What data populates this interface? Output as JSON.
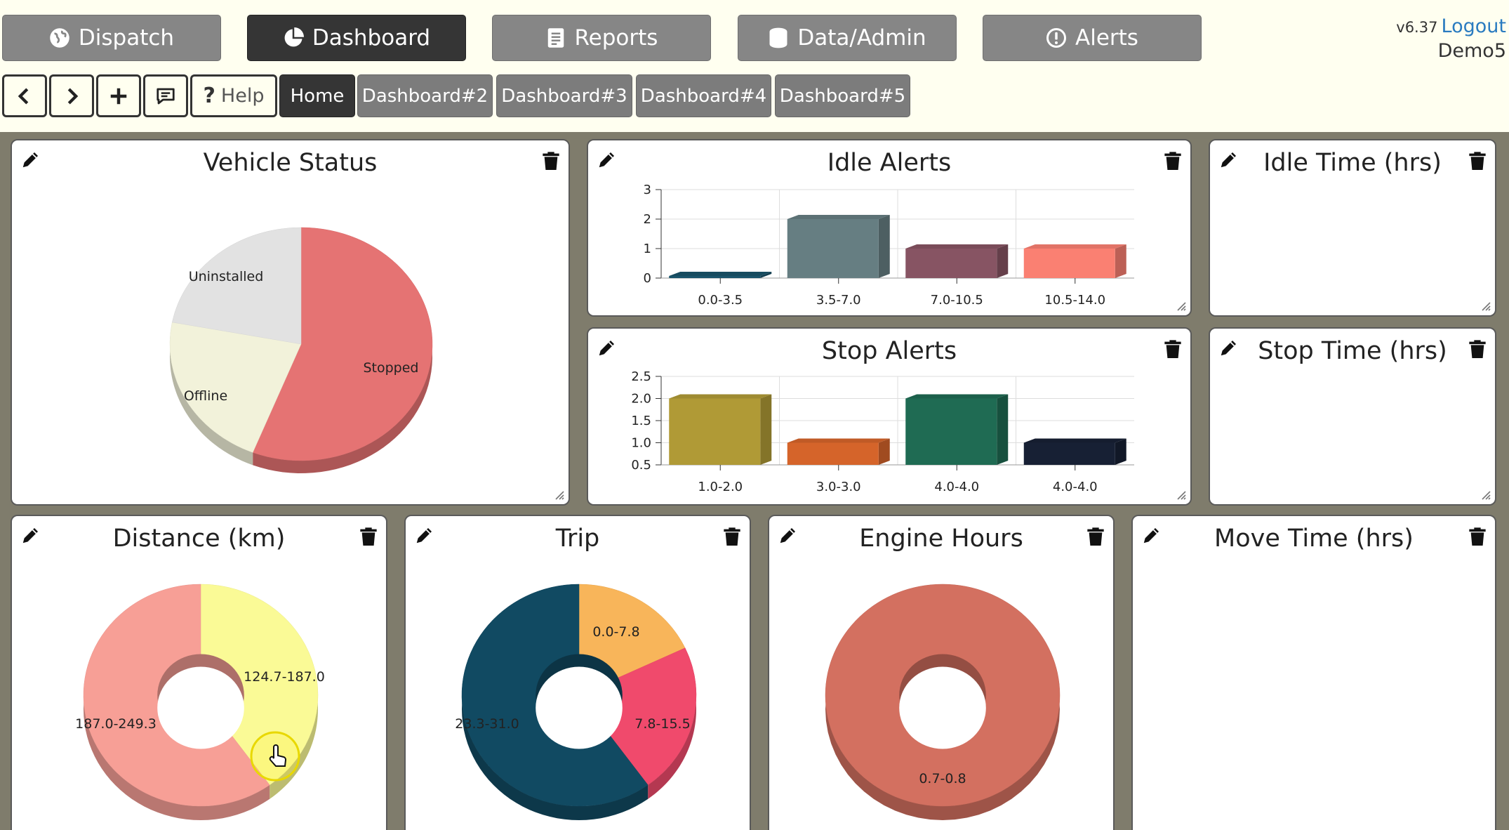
{
  "app": {
    "version": "v6.37",
    "logout": "Logout",
    "user": "Demo5"
  },
  "main_nav": [
    {
      "label": "Dispatch",
      "icon": "globe-icon"
    },
    {
      "label": "Dashboard",
      "icon": "pie-chart-icon",
      "active": true
    },
    {
      "label": "Reports",
      "icon": "document-icon"
    },
    {
      "label": "Data/Admin",
      "icon": "database-icon"
    },
    {
      "label": "Alerts",
      "icon": "exclamation-circle-icon"
    }
  ],
  "toolbar": {
    "back_icon": "chevron-left-icon",
    "forward_icon": "chevron-right-icon",
    "add_icon": "plus-icon",
    "comment_icon": "comment-icon",
    "help_label": "Help"
  },
  "tabs": [
    {
      "label": "Home",
      "active": true
    },
    {
      "label": "Dashboard#2"
    },
    {
      "label": "Dashboard#3"
    },
    {
      "label": "Dashboard#4"
    },
    {
      "label": "Dashboard#5"
    }
  ],
  "panels": {
    "vehicle_status": {
      "title": "Vehicle Status"
    },
    "idle_alerts": {
      "title": "Idle Alerts"
    },
    "idle_time": {
      "title": "Idle Time (hrs)"
    },
    "stop_alerts": {
      "title": "Stop Alerts"
    },
    "stop_time": {
      "title": "Stop Time (hrs)"
    },
    "distance": {
      "title": "Distance (km)"
    },
    "trip": {
      "title": "Trip"
    },
    "engine_hours": {
      "title": "Engine Hours"
    },
    "move_time": {
      "title": "Move Time (hrs)"
    }
  },
  "chart_data": [
    {
      "id": "vehicle_status",
      "type": "pie",
      "title": "Vehicle Status",
      "slices": [
        {
          "label": "Stopped",
          "value": 56,
          "color": "#E57373"
        },
        {
          "label": "Offline",
          "value": 22,
          "color": "#F2F2DA"
        },
        {
          "label": "Uninstalled",
          "value": 22,
          "color": "#E2E2E2"
        }
      ]
    },
    {
      "id": "idle_alerts",
      "type": "bar",
      "title": "Idle Alerts",
      "categories": [
        "0.0-3.5",
        "3.5-7.0",
        "7.0-10.5",
        "10.5-14.0"
      ],
      "values": [
        0,
        2,
        1,
        1
      ],
      "colors": [
        "#19536A",
        "#667E82",
        "#875463",
        "#FA8072"
      ],
      "yticks": [
        "0",
        "1",
        "2",
        "3"
      ],
      "ylim": [
        0,
        3
      ]
    },
    {
      "id": "stop_alerts",
      "type": "bar",
      "title": "Stop Alerts",
      "categories": [
        "1.0-2.0",
        "3.0-3.0",
        "4.0-4.0",
        "4.0-4.0"
      ],
      "values": [
        2,
        1,
        2,
        1
      ],
      "colors": [
        "#B09A36",
        "#D5642A",
        "#1F6B53",
        "#172034"
      ],
      "yticks": [
        "0.5",
        "1.0",
        "1.5",
        "2.0",
        "2.5"
      ],
      "ylim": [
        0.5,
        2.5
      ]
    },
    {
      "id": "distance",
      "type": "pie",
      "title": "Distance (km)",
      "slices": [
        {
          "label": "124.7-187.0",
          "value": 40,
          "color": "#FAFA96"
        },
        {
          "label": "187.0-249.3",
          "value": 60,
          "color": "#F79F96"
        }
      ]
    },
    {
      "id": "trip",
      "type": "pie",
      "title": "Trip",
      "slices": [
        {
          "label": "0.0-7.8",
          "value": 18,
          "color": "#F8B55A"
        },
        {
          "label": "7.8-15.5",
          "value": 22,
          "color": "#F04A6C"
        },
        {
          "label": "23.3-31.0",
          "value": 60,
          "color": "#114A62"
        }
      ]
    },
    {
      "id": "engine_hours",
      "type": "pie",
      "title": "Engine Hours",
      "slices": [
        {
          "label": "0.7-0.8",
          "value": 100,
          "color": "#D37060"
        }
      ]
    }
  ]
}
